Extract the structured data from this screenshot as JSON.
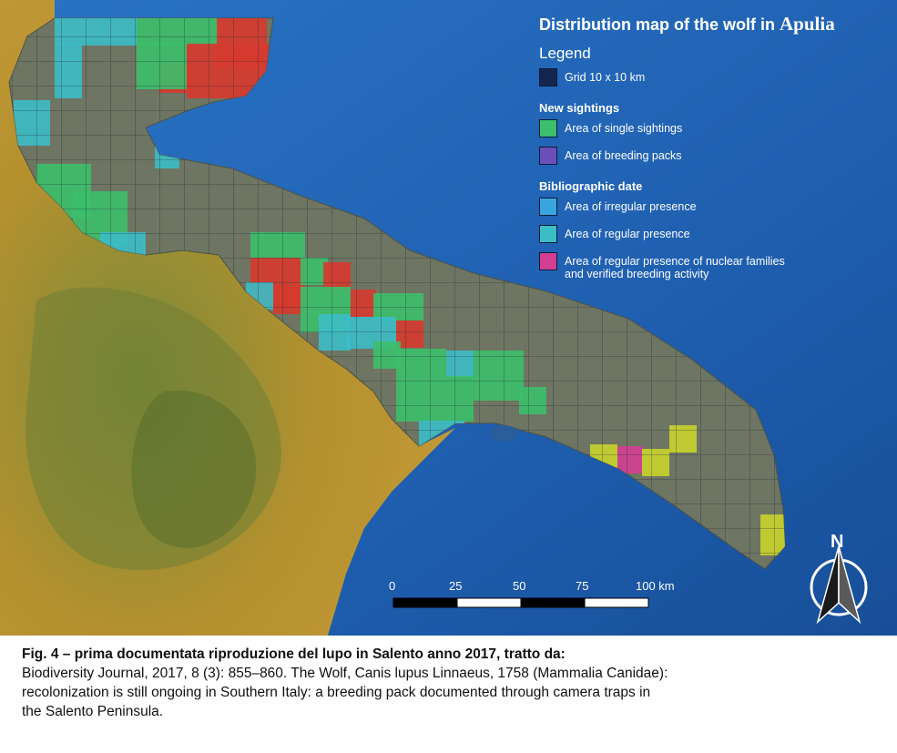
{
  "legend": {
    "title": "Distribution map of the wolf in",
    "title_region": "Apulia",
    "heading": "Legend",
    "grid_label": "Grid 10 x 10 km",
    "new_sightings_title": "New sightings",
    "single_sightings": "Area of single sightings",
    "breeding_packs": "Area of breeding packs",
    "bibliographic_title": "Bibliographic date",
    "irregular_presence": "Area of irregular presence",
    "regular_presence": "Area of regular presence",
    "nuclear_families_line1": "Area of regular presence of nuclear families",
    "nuclear_families_line2": "and verified breeding activity"
  },
  "colors": {
    "sea": "#1f5fb0",
    "land_dark": "#6e7562",
    "land_mountain": "#b4912e",
    "grid_line": "#1a2236",
    "single_sightings": "#3cbf6a",
    "breeding_packs": "#6b4fb8",
    "irregular_presence": "#3aa6df",
    "regular_presence": "#3cbdc6",
    "nuclear_families": "#d23f92",
    "red_cells": "#d63a2e",
    "yellow_cells": "#c8d32e"
  },
  "scale_bar": {
    "labels": [
      "0",
      "25",
      "50",
      "75",
      "100 km"
    ]
  },
  "north_arrow": {
    "label": "N"
  },
  "caption": {
    "bold_line": "Fig. 4 – prima documentata riproduzione del lupo in Salento anno 2017, tratto da:",
    "line1": "Biodiversity Journal, 2017, 8 (3): 855–860. The Wolf, Canis lupus Linnaeus, 1758 (Mammalia Canidae):",
    "line2": "recolonization is still ongoing in Southern Italy: a breeding pack documented through camera traps in",
    "line3": "the Salento Peninsula."
  }
}
